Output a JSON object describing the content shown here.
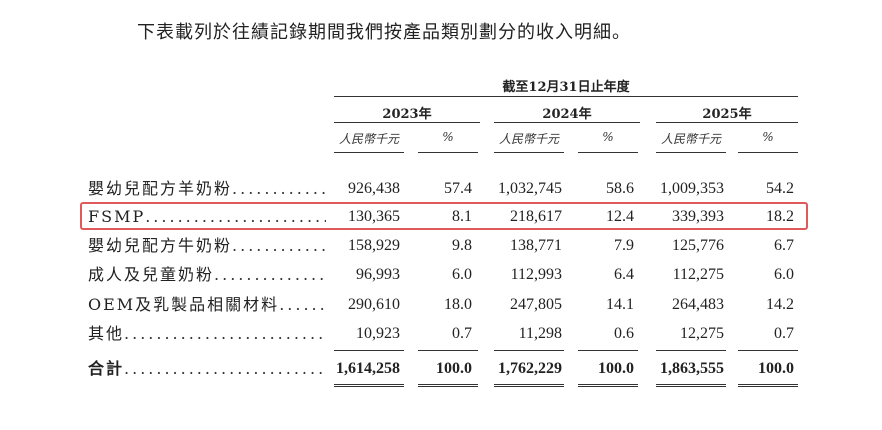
{
  "intro_text": "下表載列於往績記錄期間我們按產品類別劃分的收入明細。",
  "table": {
    "period_header": "截至12月31日止年度",
    "years": [
      "2023年",
      "2024年",
      "2025年"
    ],
    "unit_amount": "人民幣千元",
    "unit_percent": "%",
    "dots": "......................................",
    "rows": [
      {
        "label": "嬰幼兒配方羊奶粉",
        "values": [
          "926,438",
          "57.4",
          "1,032,745",
          "58.6",
          "1,009,353",
          "54.2"
        ]
      },
      {
        "label": "FSMP",
        "values": [
          "130,365",
          "8.1",
          "218,617",
          "12.4",
          "339,393",
          "18.2"
        ]
      },
      {
        "label": "嬰幼兒配方牛奶粉",
        "values": [
          "158,929",
          "9.8",
          "138,771",
          "7.9",
          "125,776",
          "6.7"
        ]
      },
      {
        "label": "成人及兒童奶粉",
        "values": [
          "96,993",
          "6.0",
          "112,993",
          "6.4",
          "112,275",
          "6.0"
        ]
      },
      {
        "label": "OEM及乳製品相關材料",
        "values": [
          "290,610",
          "18.0",
          "247,805",
          "14.1",
          "264,483",
          "14.2"
        ]
      },
      {
        "label": "其他",
        "values": [
          "10,923",
          "0.7",
          "11,298",
          "0.6",
          "12,275",
          "0.7"
        ]
      }
    ],
    "total": {
      "label": "合計",
      "values": [
        "1,614,258",
        "100.0",
        "1,762,229",
        "100.0",
        "1,863,555",
        "100.0"
      ]
    }
  },
  "highlight_color": "#e05a5a"
}
